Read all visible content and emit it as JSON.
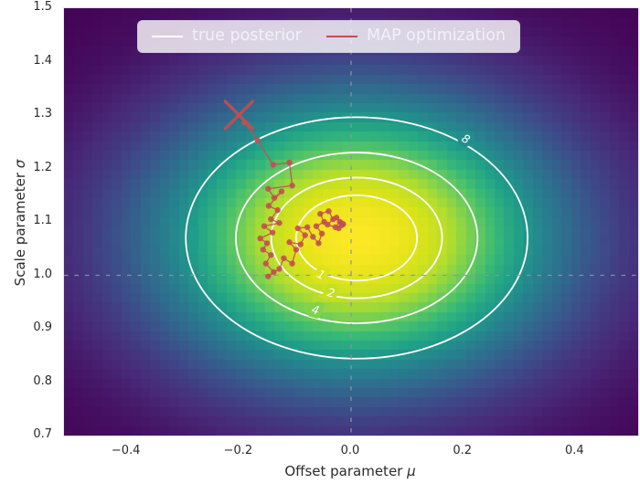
{
  "figure": {
    "background": "#ffffff"
  },
  "legend": {
    "background": "rgba(255,255,255,0.8)",
    "text_color": "#f3f0f8",
    "entries": [
      {
        "label": "true posterior",
        "color": "#ffffff",
        "line_thickness": 2.5
      },
      {
        "label": "MAP optimization",
        "color": "#c44e52",
        "line_thickness": 1.6
      }
    ]
  },
  "chart_data": {
    "type": "heatmap",
    "title": "",
    "xlabel": "Offset parameter",
    "xlabel_symbol": "μ",
    "ylabel": "Scale parameter",
    "ylabel_symbol": "σ",
    "xlim": [
      -0.512,
      0.512
    ],
    "ylim": [
      0.7,
      1.5
    ],
    "grid": false,
    "x_ticks": {
      "values": [
        -0.4,
        -0.2,
        0.0,
        0.2,
        0.4
      ],
      "labels": [
        "−0.4",
        "−0.2",
        "0.0",
        "0.2",
        "0.4"
      ]
    },
    "y_ticks": {
      "values": [
        0.7,
        0.8,
        0.9,
        1.0,
        1.1,
        1.2,
        1.3,
        1.4,
        1.5
      ],
      "labels": [
        "0.7",
        "0.8",
        "0.9",
        "1.0",
        "1.1",
        "1.2",
        "1.3",
        "1.4",
        "1.5"
      ]
    },
    "reference_lines": {
      "vertical_mu": 0.0,
      "horizontal_sigma": 1.0,
      "style": "dashed",
      "color": "#9094a3"
    },
    "density": {
      "description": "2D Gaussian posterior density rendered as viridis pcolormesh",
      "colormap": "viridis",
      "mode": {
        "mu": 0.01,
        "sigma": 1.07
      },
      "std": {
        "mu": 0.0762,
        "sigma": 0.0565
      },
      "color_exponent_scale": 10.6,
      "grid_cells": {
        "cols": 60,
        "rows": 45
      },
      "viridis_stops": [
        "#440154",
        "#482878",
        "#3e4989",
        "#31688e",
        "#26828e",
        "#1f9e89",
        "#35b779",
        "#6dcd59",
        "#b4de2c",
        "#dde318",
        "#fde725"
      ]
    },
    "contours": {
      "color": "#ffffff",
      "linewidth": 1.8,
      "levels": [
        1,
        2,
        4,
        8
      ],
      "label_color": "#ffffff",
      "labels": [
        {
          "text": "1",
          "mu": -0.054,
          "sigma": 1.0,
          "rot": 26
        },
        {
          "text": "2",
          "mu": -0.036,
          "sigma": 0.966,
          "rot": 14
        },
        {
          "text": "4",
          "mu": -0.064,
          "sigma": 0.934,
          "rot": 16
        },
        {
          "text": "8",
          "mu": 0.204,
          "sigma": 1.254,
          "rot": 29
        }
      ]
    },
    "series": [
      {
        "name": "true posterior",
        "kind": "contour-lines",
        "color": "#ffffff"
      },
      {
        "name": "MAP optimization",
        "kind": "optimization-path",
        "color": "#c44e52",
        "start": {
          "mu": -0.2,
          "sigma": 1.3,
          "marker": "x",
          "marker_half_size": 15,
          "marker_linewidth": 3.4
        },
        "point_radius": 3.2,
        "line_width": 1.3,
        "points": [
          [
            -0.19,
            1.286
          ],
          [
            -0.167,
            1.253
          ],
          [
            -0.139,
            1.207
          ],
          [
            -0.11,
            1.211
          ],
          [
            -0.105,
            1.168
          ],
          [
            -0.148,
            1.162
          ],
          [
            -0.137,
            1.145
          ],
          [
            -0.124,
            1.157
          ],
          [
            -0.147,
            1.13
          ],
          [
            -0.131,
            1.122
          ],
          [
            -0.143,
            1.105
          ],
          [
            -0.128,
            1.098
          ],
          [
            -0.155,
            1.092
          ],
          [
            -0.14,
            1.08
          ],
          [
            -0.162,
            1.069
          ],
          [
            -0.15,
            1.06
          ],
          [
            -0.157,
            1.048
          ],
          [
            -0.143,
            1.038
          ],
          [
            -0.152,
            1.022
          ],
          [
            -0.138,
            1.006
          ],
          [
            -0.148,
            0.998
          ],
          [
            -0.128,
            1.012
          ],
          [
            -0.12,
            1.032
          ],
          [
            -0.105,
            1.022
          ],
          [
            -0.098,
            1.048
          ],
          [
            -0.11,
            1.062
          ],
          [
            -0.09,
            1.058
          ],
          [
            -0.082,
            1.075
          ],
          [
            -0.095,
            1.088
          ],
          [
            -0.078,
            1.09
          ],
          [
            -0.068,
            1.072
          ],
          [
            -0.058,
            1.06
          ],
          [
            -0.052,
            1.078
          ],
          [
            -0.062,
            1.092
          ],
          [
            -0.048,
            1.1
          ],
          [
            -0.055,
            1.115
          ],
          [
            -0.04,
            1.12
          ],
          [
            -0.032,
            1.105
          ],
          [
            -0.042,
            1.095
          ],
          [
            -0.028,
            1.09
          ],
          [
            -0.02,
            1.1
          ],
          [
            -0.026,
            1.108
          ],
          [
            -0.016,
            1.094
          ],
          [
            -0.022,
            1.088
          ],
          [
            -0.018,
            1.098
          ],
          [
            -0.014,
            1.096
          ]
        ]
      }
    ]
  }
}
